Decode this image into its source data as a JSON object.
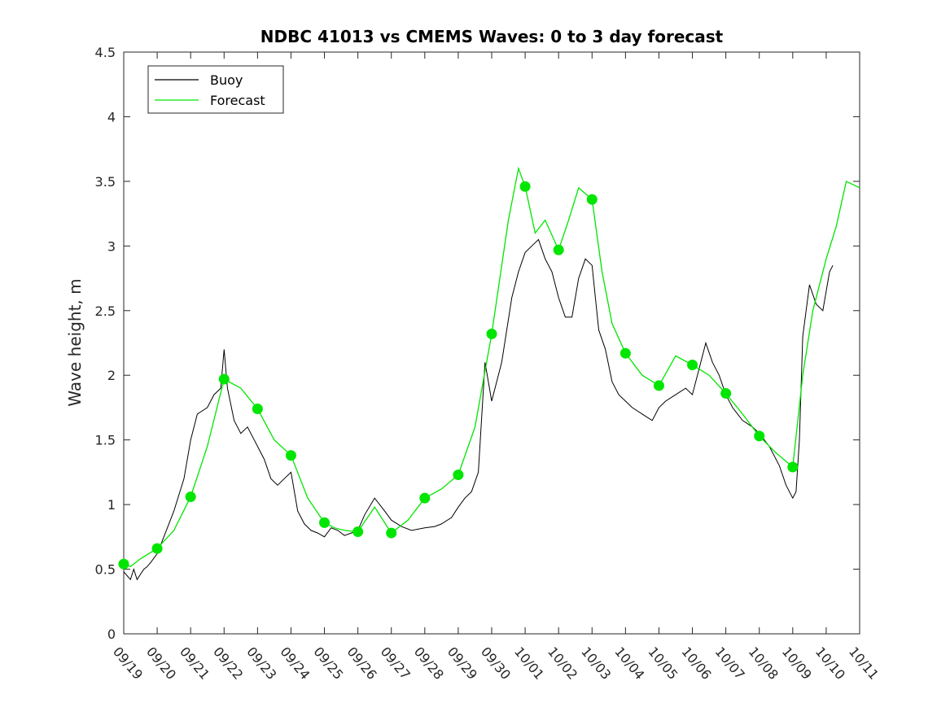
{
  "chart_data": {
    "type": "line",
    "title": "NDBC 41013 vs CMEMS Waves: 0 to 3 day forecast",
    "xlabel": "",
    "ylabel": "Wave height, m",
    "xlim": [
      "09/19",
      "10/11"
    ],
    "ylim": [
      0,
      4.5
    ],
    "yticks": [
      0,
      0.5,
      1,
      1.5,
      2,
      2.5,
      3,
      3.5,
      4,
      4.5
    ],
    "yticklabels": [
      "0",
      "0.5",
      "1",
      "1.5",
      "2",
      "2.5",
      "3",
      "3.5",
      "4",
      "4.5"
    ],
    "xticklabels": [
      "09/19",
      "09/20",
      "09/21",
      "09/22",
      "09/23",
      "09/24",
      "09/25",
      "09/26",
      "09/27",
      "09/28",
      "09/29",
      "09/30",
      "10/01",
      "10/02",
      "10/03",
      "10/04",
      "10/05",
      "10/06",
      "10/07",
      "10/08",
      "10/09",
      "10/10",
      "10/11"
    ],
    "legend_position": "top-left",
    "grid": false,
    "colors": {
      "buoy": "#000000",
      "forecast": "#00e600"
    },
    "legend": [
      {
        "label": "Buoy",
        "color": "#000000"
      },
      {
        "label": "Forecast",
        "color": "#00e600"
      }
    ],
    "series": [
      {
        "name": "Buoy",
        "x_day_index": [
          0,
          0.1,
          0.2,
          0.3,
          0.4,
          0.5,
          0.6,
          0.7,
          0.8,
          1.0,
          1.2,
          1.5,
          1.8,
          2.0,
          2.2,
          2.5,
          2.7,
          2.9,
          3.0,
          3.1,
          3.3,
          3.5,
          3.7,
          3.9,
          4.0,
          4.2,
          4.4,
          4.6,
          4.8,
          5.0,
          5.2,
          5.4,
          5.6,
          5.8,
          6.0,
          6.2,
          6.4,
          6.6,
          6.8,
          7.0,
          7.2,
          7.5,
          7.8,
          8.0,
          8.3,
          8.6,
          9.0,
          9.3,
          9.5,
          9.8,
          10.0,
          10.2,
          10.4,
          10.6,
          10.8,
          11.0,
          11.3,
          11.6,
          11.8,
          12.0,
          12.2,
          12.4,
          12.6,
          12.8,
          13.0,
          13.2,
          13.4,
          13.6,
          13.8,
          14.0,
          14.2,
          14.4,
          14.6,
          14.8,
          15.0,
          15.2,
          15.5,
          15.8,
          16.0,
          16.2,
          16.5,
          16.8,
          17.0,
          17.2,
          17.4,
          17.6,
          17.8,
          18.0,
          18.2,
          18.5,
          18.8,
          19.0,
          19.3,
          19.6,
          19.8,
          20.0,
          20.1,
          20.2,
          20.3,
          20.5,
          20.7,
          20.9,
          21.1,
          21.2
        ],
        "values": [
          0.48,
          0.45,
          0.42,
          0.5,
          0.42,
          0.46,
          0.5,
          0.52,
          0.55,
          0.62,
          0.75,
          0.95,
          1.2,
          1.5,
          1.7,
          1.75,
          1.85,
          1.9,
          2.2,
          1.9,
          1.65,
          1.55,
          1.6,
          1.5,
          1.45,
          1.35,
          1.2,
          1.15,
          1.2,
          1.25,
          0.95,
          0.85,
          0.8,
          0.78,
          0.75,
          0.82,
          0.8,
          0.76,
          0.78,
          0.8,
          0.92,
          1.05,
          0.95,
          0.88,
          0.83,
          0.8,
          0.82,
          0.83,
          0.85,
          0.9,
          0.98,
          1.05,
          1.1,
          1.25,
          2.1,
          1.8,
          2.1,
          2.6,
          2.8,
          2.95,
          3.0,
          3.05,
          2.9,
          2.8,
          2.6,
          2.45,
          2.45,
          2.75,
          2.9,
          2.85,
          2.35,
          2.2,
          1.95,
          1.85,
          1.8,
          1.75,
          1.7,
          1.65,
          1.75,
          1.8,
          1.85,
          1.9,
          1.85,
          2.05,
          2.25,
          2.1,
          2.0,
          1.85,
          1.75,
          1.65,
          1.6,
          1.55,
          1.45,
          1.3,
          1.15,
          1.05,
          1.1,
          1.5,
          2.3,
          2.7,
          2.55,
          2.5,
          2.8,
          2.85
        ]
      },
      {
        "name": "Forecast",
        "x_day_index": [
          0,
          0.2,
          0.5,
          1.0,
          1.5,
          2.0,
          2.5,
          3.0,
          3.5,
          4.0,
          4.5,
          5.0,
          5.5,
          6.0,
          6.3,
          6.6,
          7.0,
          7.5,
          8.0,
          8.5,
          9.0,
          9.5,
          10.0,
          10.5,
          11.0,
          11.5,
          11.8,
          12.0,
          12.3,
          12.6,
          13.0,
          13.3,
          13.6,
          14.0,
          14.3,
          14.6,
          15.0,
          15.5,
          16.0,
          16.5,
          17.0,
          17.5,
          18.0,
          18.5,
          19.0,
          19.5,
          20.0,
          20.3,
          20.6,
          21.0,
          21.3,
          21.6,
          22.0
        ],
        "values": [
          0.54,
          0.52,
          0.58,
          0.66,
          0.8,
          1.06,
          1.45,
          1.97,
          1.9,
          1.74,
          1.5,
          1.38,
          1.05,
          0.86,
          0.82,
          0.8,
          0.79,
          0.98,
          0.78,
          0.88,
          1.05,
          1.12,
          1.23,
          1.6,
          2.32,
          3.2,
          3.6,
          3.46,
          3.1,
          3.2,
          2.97,
          3.2,
          3.45,
          3.36,
          2.8,
          2.4,
          2.17,
          2.0,
          1.92,
          2.15,
          2.08,
          2.0,
          1.86,
          1.7,
          1.53,
          1.4,
          1.29,
          2.0,
          2.5,
          2.9,
          3.15,
          3.5,
          3.45
        ]
      }
    ],
    "markers": {
      "name": "Forecast",
      "x_day_index": [
        0,
        1,
        2,
        3,
        4,
        5,
        6,
        7,
        8,
        9,
        10,
        11,
        12,
        13,
        14,
        15,
        16,
        17,
        18,
        19,
        20
      ],
      "values": [
        0.54,
        0.66,
        1.06,
        1.97,
        1.74,
        1.38,
        0.86,
        0.79,
        0.78,
        1.05,
        1.23,
        2.32,
        3.46,
        2.97,
        3.36,
        2.17,
        1.92,
        2.08,
        1.86,
        1.53,
        1.29
      ]
    }
  }
}
